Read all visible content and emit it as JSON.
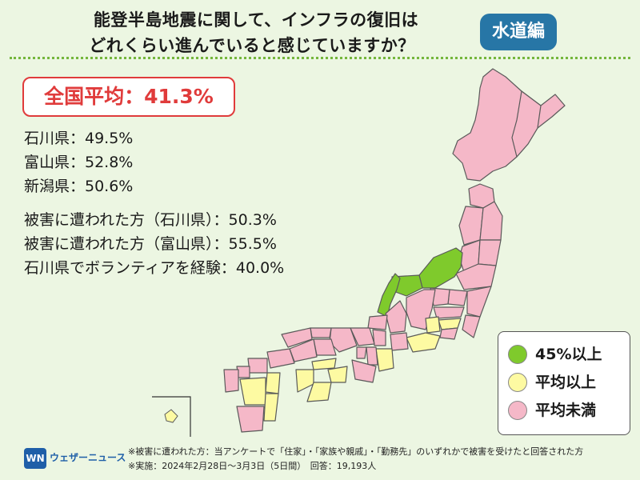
{
  "title": {
    "line1": "能登半島地震に関して、インフラの復旧は",
    "line2": "どれくらい進んでいると感じていますか？",
    "badge": "水道編"
  },
  "national_average": "全国平均：41.3%",
  "stats": [
    "石川県：49.5%",
    "富山県：52.8%",
    "新潟県：50.6%",
    "被害に遭われた方（石川県）：50.3%",
    "被害に遭われた方（富山県）：55.5%",
    "石川県でボランティアを経験：40.0%"
  ],
  "legend": [
    {
      "label": "45%以上",
      "color": "#7fca2c"
    },
    {
      "label": "平均以上",
      "color": "#fdfaa2"
    },
    {
      "label": "平均未満",
      "color": "#f5b8c8"
    }
  ],
  "colors": {
    "green": "#7fca2c",
    "yellow": "#fdfaa2",
    "pink": "#f5b8c8",
    "border": "#5a5a5a"
  },
  "logo": {
    "mark": "WN",
    "name": "ウェザーニュース"
  },
  "notes": [
    "※被害に遭われた方：当アンケートで「住家」・「家族や親戚」・「勤務先」のいずれかで被害を受けたと回答された方",
    "※実施：2024年2月28日〜3月3日（5日間）　回答：19,193人"
  ]
}
